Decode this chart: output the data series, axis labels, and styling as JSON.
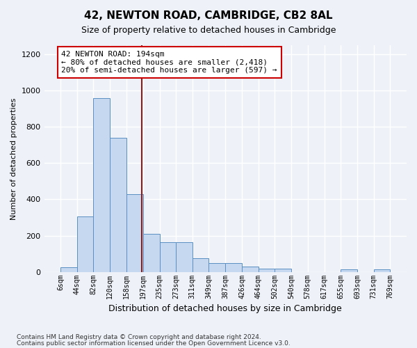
{
  "title": "42, NEWTON ROAD, CAMBRIDGE, CB2 8AL",
  "subtitle": "Size of property relative to detached houses in Cambridge",
  "xlabel": "Distribution of detached houses by size in Cambridge",
  "ylabel": "Number of detached properties",
  "annotation_lines": [
    "42 NEWTON ROAD: 194sqm",
    "← 80% of detached houses are smaller (2,418)",
    "20% of semi-detached houses are larger (597) →"
  ],
  "bar_color": "#c5d8f0",
  "bar_edge_color": "#5a8fc2",
  "vline_color": "#8b1a1a",
  "vline_x": 194,
  "bins": [
    6,
    44,
    82,
    120,
    158,
    197,
    235,
    273,
    311,
    349,
    387,
    426,
    464,
    502,
    540,
    578,
    617,
    655,
    693,
    731,
    769
  ],
  "values": [
    25,
    305,
    960,
    740,
    430,
    210,
    165,
    165,
    75,
    48,
    48,
    30,
    18,
    18,
    0,
    0,
    0,
    15,
    0,
    15
  ],
  "ylim": [
    0,
    1250
  ],
  "yticks": [
    0,
    200,
    400,
    600,
    800,
    1000,
    1200
  ],
  "footer1": "Contains HM Land Registry data © Crown copyright and database right 2024.",
  "footer2": "Contains public sector information licensed under the Open Government Licence v3.0.",
  "background_color": "#eef2f8",
  "grid_color": "#ffffff",
  "annotation_box_color": "#ffffff",
  "annotation_box_edge_color": "#cc0000"
}
